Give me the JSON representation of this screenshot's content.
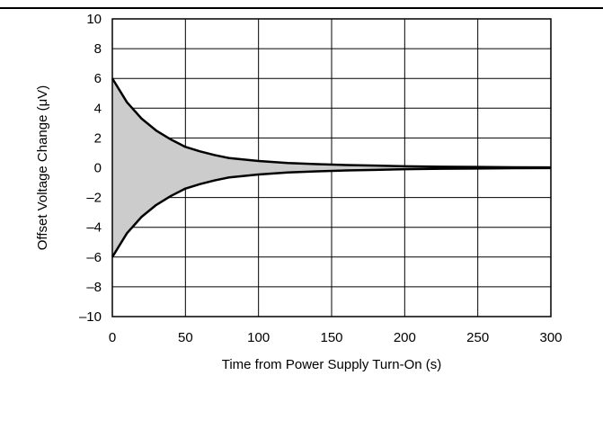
{
  "chart_data": {
    "type": "area",
    "xlabel": "Time from Power Supply Turn-On (s)",
    "ylabel": "Offset Voltage Change (μV)",
    "xlim": [
      0,
      300
    ],
    "ylim": [
      -10,
      10
    ],
    "x_ticks": [
      0,
      50,
      100,
      150,
      200,
      250,
      300
    ],
    "y_ticks": [
      10,
      8,
      6,
      4,
      2,
      0,
      -2,
      -4,
      -6,
      -8,
      -10
    ],
    "y_tick_labels": [
      "10",
      "8",
      "6",
      "4",
      "2",
      "0",
      "–2",
      "–4",
      "–6",
      "–8",
      "–10"
    ],
    "grid": true,
    "legend": "none",
    "fill_color": "#cccccc",
    "line_color": "#000000",
    "series": [
      {
        "x": [
          0,
          10,
          20,
          30,
          40,
          50,
          60,
          70,
          80,
          90,
          100,
          120,
          140,
          160,
          180,
          200,
          225,
          250,
          275,
          300
        ],
        "values": [
          6.0,
          4.4,
          3.3,
          2.5,
          1.9,
          1.4,
          1.1,
          0.85,
          0.65,
          0.55,
          0.45,
          0.32,
          0.24,
          0.18,
          0.14,
          0.1,
          0.07,
          0.05,
          0.03,
          0.02
        ]
      },
      {
        "x": [
          0,
          10,
          20,
          30,
          40,
          50,
          60,
          70,
          80,
          90,
          100,
          120,
          140,
          160,
          180,
          200,
          225,
          250,
          275,
          300
        ],
        "values": [
          -6.0,
          -4.4,
          -3.3,
          -2.5,
          -1.9,
          -1.4,
          -1.1,
          -0.85,
          -0.65,
          -0.55,
          -0.45,
          -0.32,
          -0.24,
          -0.18,
          -0.14,
          -0.1,
          -0.07,
          -0.05,
          -0.03,
          -0.02
        ]
      }
    ]
  }
}
